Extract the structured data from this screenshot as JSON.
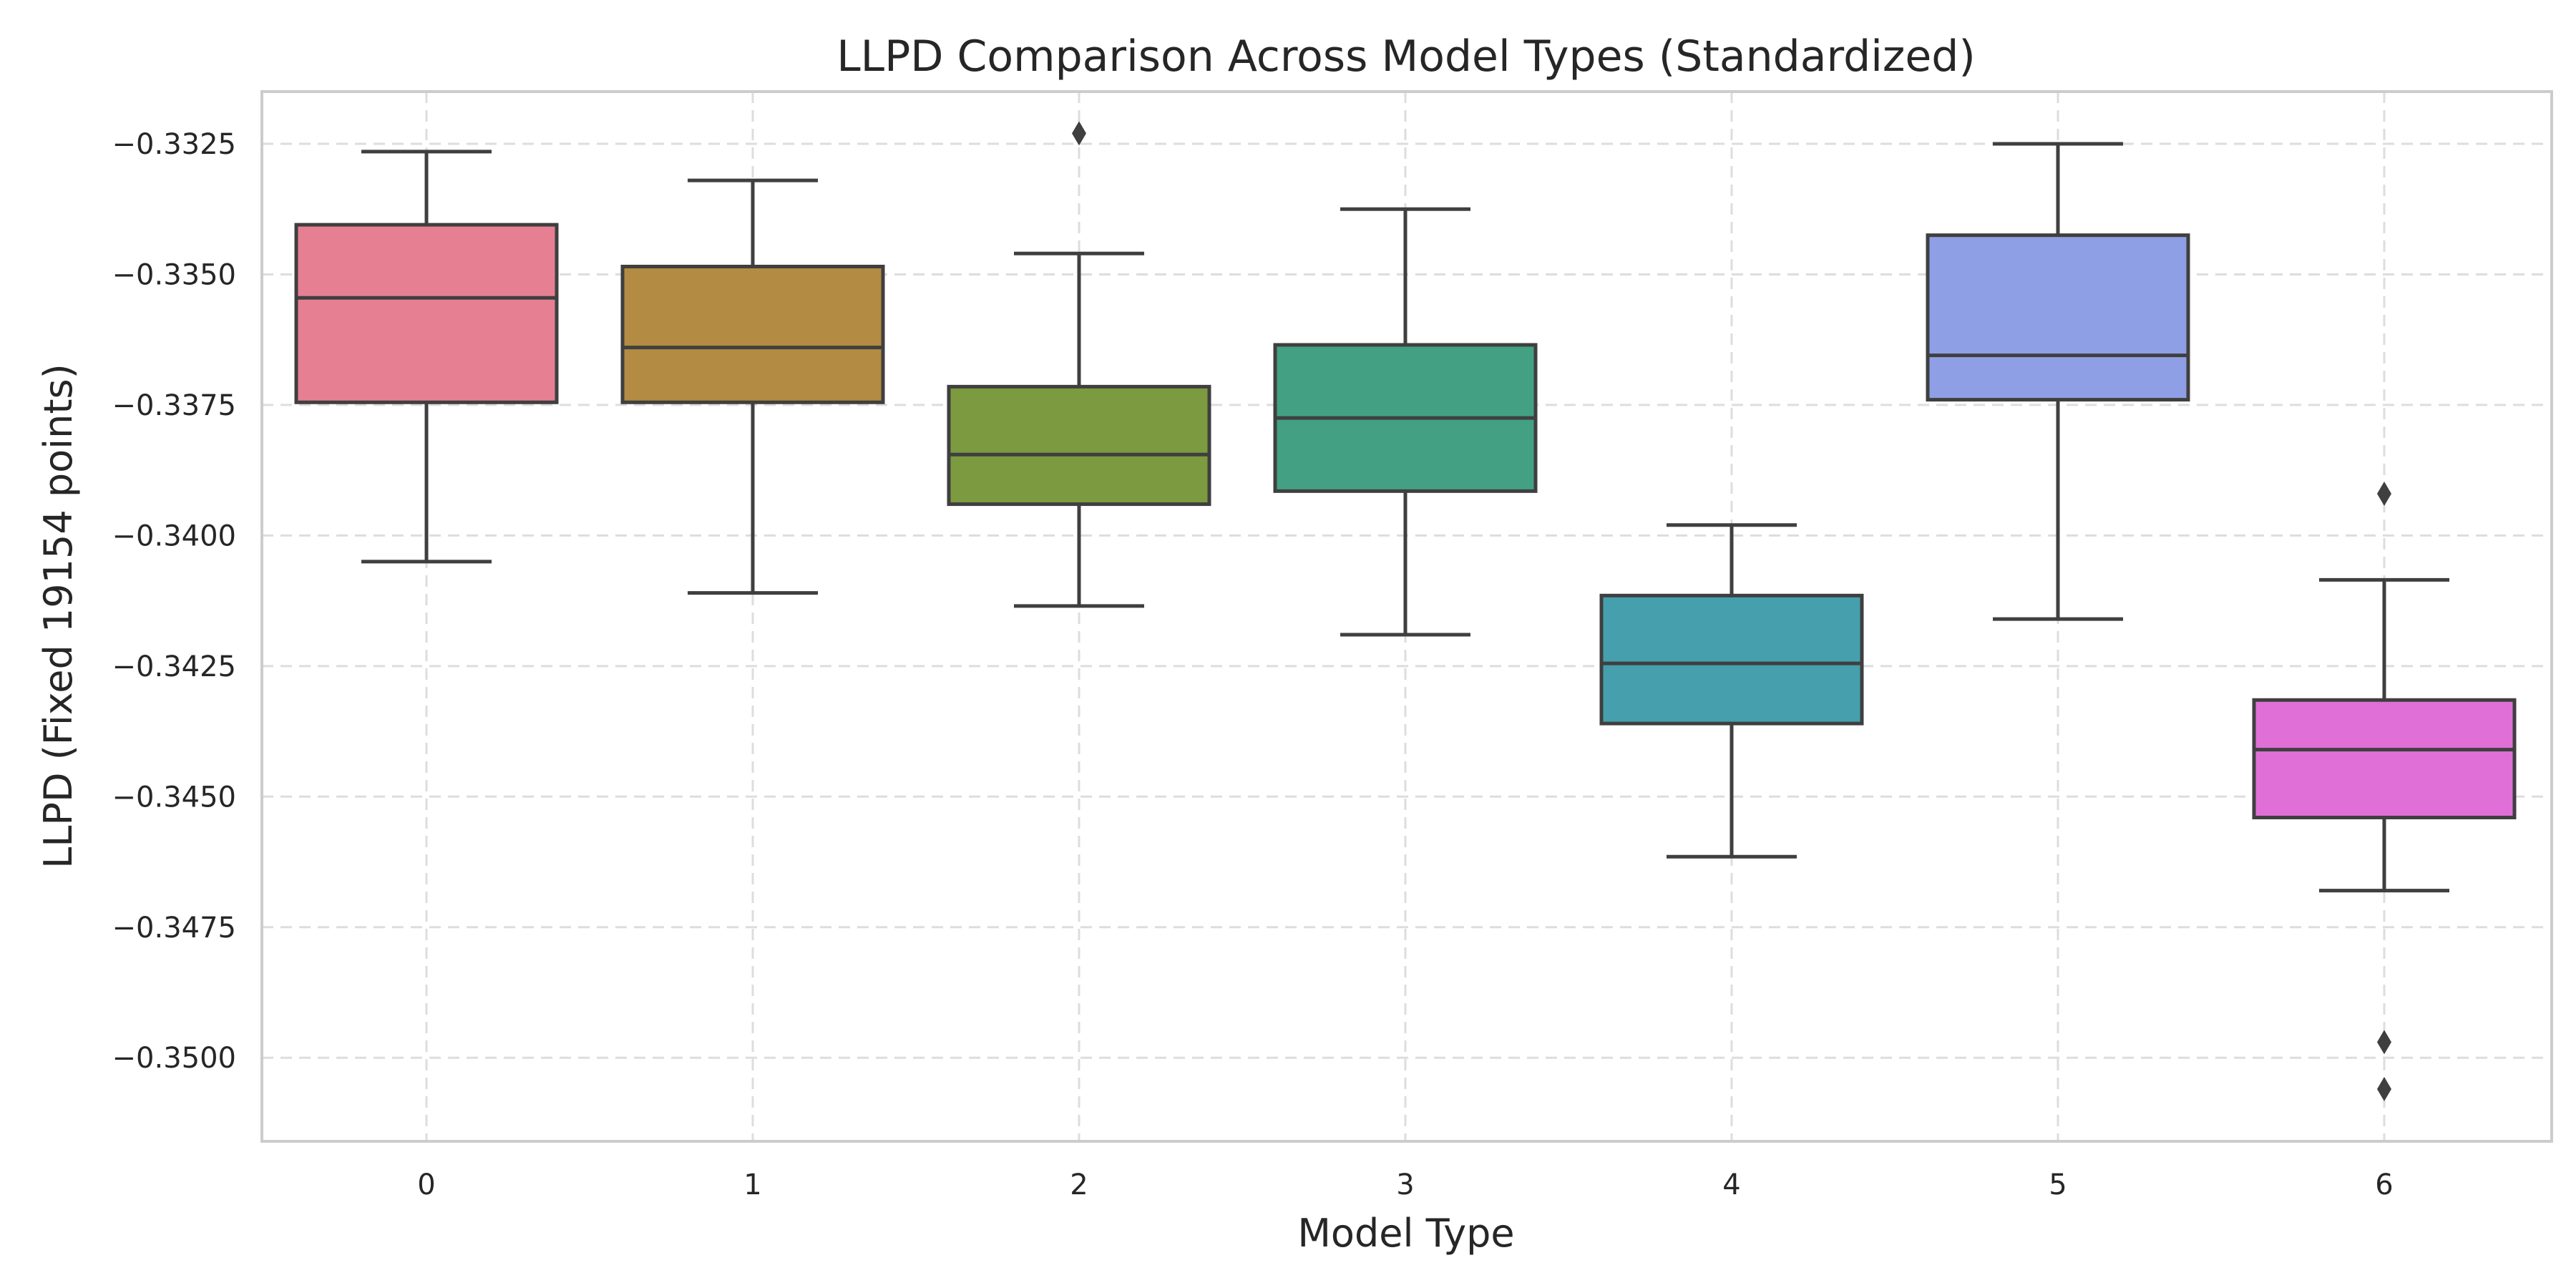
{
  "chart_data": {
    "type": "box",
    "title": "LLPD Comparison Across Model Types (Standardized)",
    "xlabel": "Model Type",
    "ylabel": "LLPD (Fixed 19154 points)",
    "categories": [
      "0",
      "1",
      "2",
      "3",
      "4",
      "5",
      "6"
    ],
    "ylim": [
      -0.3516,
      -0.3315
    ],
    "yticks": [
      -0.3325,
      -0.335,
      -0.3375,
      -0.34,
      -0.3425,
      -0.345,
      -0.3475,
      -0.35
    ],
    "ytick_labels": [
      "−0.3325",
      "−0.3350",
      "−0.3375",
      "−0.3400",
      "−0.3425",
      "−0.3450",
      "−0.3475",
      "−0.3500"
    ],
    "grid": true,
    "boxes": [
      {
        "category": "0",
        "whisker_low": -0.3405,
        "q1": -0.33745,
        "median": -0.33545,
        "q3": -0.33405,
        "whisker_high": -0.33265,
        "outliers": [],
        "color": "#e77f92"
      },
      {
        "category": "1",
        "whisker_low": -0.3411,
        "q1": -0.33745,
        "median": -0.3364,
        "q3": -0.33485,
        "whisker_high": -0.3332,
        "outliers": [],
        "color": "#b38b42"
      },
      {
        "category": "2",
        "whisker_low": -0.34135,
        "q1": -0.3394,
        "median": -0.33845,
        "q3": -0.33715,
        "whisker_high": -0.3346,
        "outliers": [
          -0.3323
        ],
        "color": "#7c9a3f"
      },
      {
        "category": "3",
        "whisker_low": -0.3419,
        "q1": -0.33915,
        "median": -0.33775,
        "q3": -0.33635,
        "whisker_high": -0.33375,
        "outliers": [],
        "color": "#43a083"
      },
      {
        "category": "4",
        "whisker_low": -0.34615,
        "q1": -0.3436,
        "median": -0.34245,
        "q3": -0.34115,
        "whisker_high": -0.3398,
        "outliers": [],
        "color": "#469fac"
      },
      {
        "category": "5",
        "whisker_low": -0.3416,
        "q1": -0.3374,
        "median": -0.33655,
        "q3": -0.33425,
        "whisker_high": -0.3325,
        "outliers": [],
        "color": "#8f9fe5"
      },
      {
        "category": "6",
        "whisker_low": -0.3468,
        "q1": -0.3454,
        "median": -0.3441,
        "q3": -0.34315,
        "whisker_high": -0.34085,
        "outliers": [
          -0.3392,
          -0.3497,
          -0.3506
        ],
        "color": "#e06fd8"
      }
    ]
  }
}
